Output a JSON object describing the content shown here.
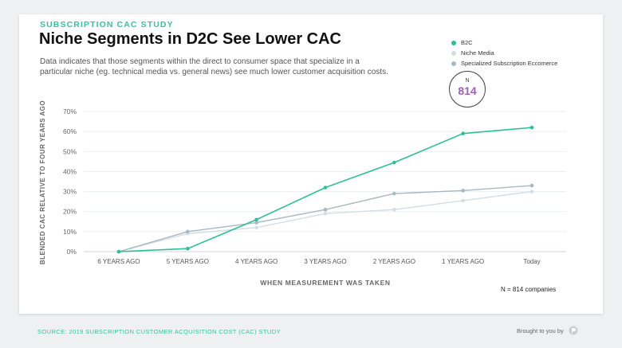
{
  "header": {
    "kicker": "SUBSCRIPTION CAC STUDY",
    "title": "Niche Segments in D2C See Lower CAC",
    "description": "Data indicates that those segments within the direct to consumer space that specialize in a particular niche (eg. technical media vs. general news) see much lower customer acquisition costs."
  },
  "legend": [
    {
      "label": "B2C",
      "color": "#2fbf97"
    },
    {
      "label": "Niche Media",
      "color": "#d3dde2"
    },
    {
      "label": "Specialized Subscription Eccomerce",
      "color": "#a9b8c0"
    }
  ],
  "badge": {
    "letter": "N",
    "value": "814"
  },
  "n_note": "N = 814 companies",
  "footer": {
    "source": "SOURCE: 2019 SUBSCRIPTION CUSTOMER ACQUISITION COST (CAC) STUDY",
    "brought": "Brought to you by"
  },
  "chart_data": {
    "type": "line",
    "title": "",
    "xlabel": "WHEN MEASUREMENT WAS TAKEN",
    "ylabel": "BLENDED CAC RELATIVE TO FOUR YEARS AGO",
    "categories": [
      "6 YEARS AGO",
      "5 YEARS AGO",
      "4 YEARS AGO",
      "3 YEARS AGO",
      "2 YEARS AGO",
      "1 YEARS AGO",
      "Today"
    ],
    "yticks": [
      "0%",
      "10%",
      "20%",
      "30%",
      "40%",
      "50%",
      "60%",
      "70%"
    ],
    "ylim": [
      0,
      70
    ],
    "grid": true,
    "legend_position": "top-right",
    "series": [
      {
        "name": "B2C",
        "color": "#2fbf97",
        "values": [
          0,
          1.5,
          16,
          32,
          44.5,
          59,
          62
        ]
      },
      {
        "name": "Niche Media",
        "color": "#d3dde2",
        "values": [
          0,
          9,
          12,
          19,
          21,
          25.5,
          30
        ]
      },
      {
        "name": "Specialized Subscription Eccomerce",
        "color": "#a9b8c0",
        "values": [
          0,
          10,
          14.5,
          21,
          29,
          30.5,
          33
        ]
      }
    ]
  }
}
